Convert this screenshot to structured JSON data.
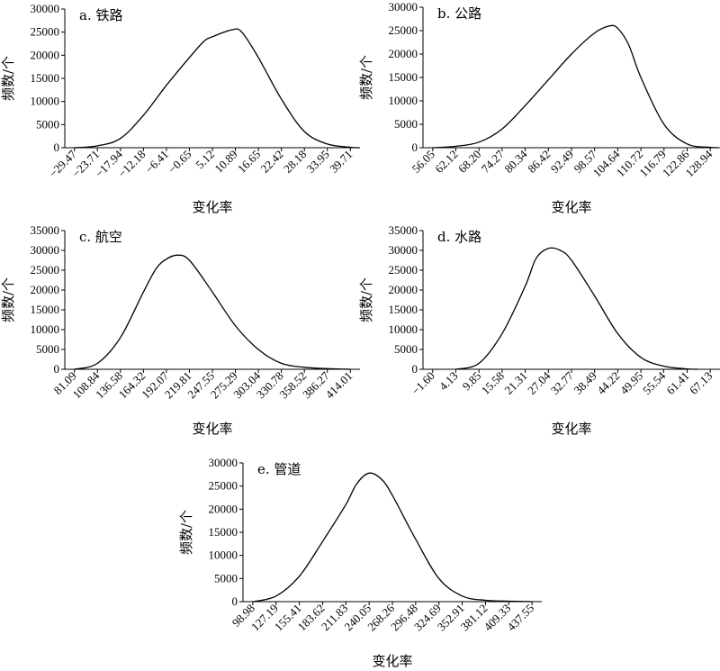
{
  "chart_data": [
    {
      "type": "line",
      "title": "a. 铁路",
      "xlabel": "变化率",
      "ylabel": "频数/个",
      "ylim": [
        0,
        30000
      ],
      "yticks": [
        "0",
        "5000",
        "10000",
        "15000",
        "20000",
        "25000",
        "30000"
      ],
      "xticks": [
        "−29.47",
        "−23.71",
        "−17.94",
        "−12.18",
        "−6.41",
        "−0.65",
        "5.12",
        "10.89",
        "16.65",
        "22.42",
        "28.18",
        "33.95",
        "39.71"
      ],
      "curve": [
        [
          -29.47,
          0
        ],
        [
          -23.71,
          400
        ],
        [
          -17.94,
          2000
        ],
        [
          -12.18,
          7000
        ],
        [
          -6.41,
          13500
        ],
        [
          -0.65,
          19500
        ],
        [
          3.0,
          23000
        ],
        [
          5.12,
          24000
        ],
        [
          10.0,
          25500
        ],
        [
          12.5,
          25000
        ],
        [
          16.65,
          19500
        ],
        [
          22.42,
          10500
        ],
        [
          28.18,
          3500
        ],
        [
          33.95,
          800
        ],
        [
          39.71,
          100
        ],
        [
          42.0,
          0
        ]
      ]
    },
    {
      "type": "line",
      "title": "b. 公路",
      "xlabel": "变化率",
      "ylabel": "频数/个",
      "ylim": [
        0,
        30000
      ],
      "yticks": [
        "0",
        "5000",
        "10000",
        "15000",
        "20000",
        "25000",
        "30000"
      ],
      "xticks": [
        "56.05",
        "62.12",
        "68.20",
        "74.27",
        "80.34",
        "86.42",
        "92.49",
        "98.57",
        "104.64",
        "110.72",
        "116.79",
        "122.86",
        "128.94"
      ],
      "curve": [
        [
          56.05,
          0
        ],
        [
          62.12,
          300
        ],
        [
          68.2,
          1200
        ],
        [
          74.27,
          4000
        ],
        [
          80.34,
          9000
        ],
        [
          86.42,
          14500
        ],
        [
          92.49,
          20000
        ],
        [
          98.57,
          24500
        ],
        [
          102.5,
          26000
        ],
        [
          104.64,
          25500
        ],
        [
          107.5,
          22000
        ],
        [
          110.72,
          15000
        ],
        [
          116.79,
          5000
        ],
        [
          122.86,
          800
        ],
        [
          128.94,
          100
        ],
        [
          131.0,
          0
        ]
      ]
    },
    {
      "type": "line",
      "title": "c. 航空",
      "xlabel": "变化率",
      "ylabel": "频数/个",
      "ylim": [
        0,
        35000
      ],
      "yticks": [
        "0",
        "5000",
        "10000",
        "15000",
        "20000",
        "25000",
        "30000",
        "35000"
      ],
      "xticks": [
        "81.09",
        "108.84",
        "136.58",
        "164.32",
        "192.07",
        "219.81",
        "247.55",
        "275.29",
        "303.04",
        "330.78",
        "358.52",
        "386.27",
        "414.01"
      ],
      "curve": [
        [
          81.09,
          0
        ],
        [
          108.84,
          1500
        ],
        [
          136.58,
          8000
        ],
        [
          164.32,
          19500
        ],
        [
          180.0,
          25500
        ],
        [
          192.07,
          27800
        ],
        [
          205.0,
          28800
        ],
        [
          219.81,
          27500
        ],
        [
          247.55,
          19500
        ],
        [
          275.29,
          11000
        ],
        [
          303.04,
          5000
        ],
        [
          330.78,
          1500
        ],
        [
          358.52,
          500
        ],
        [
          386.27,
          150
        ],
        [
          414.01,
          0
        ]
      ]
    },
    {
      "type": "line",
      "title": "d. 水路",
      "xlabel": "变化率",
      "ylabel": "频数/个",
      "ylim": [
        0,
        35000
      ],
      "yticks": [
        "0",
        "5000",
        "10000",
        "15000",
        "20000",
        "25000",
        "30000",
        "35000"
      ],
      "xticks": [
        "−1.60",
        "4.13",
        "9.85",
        "15.58",
        "21.31",
        "27.04",
        "32.77",
        "38.49",
        "44.22",
        "49.95",
        "55.54",
        "61.41",
        "67.13"
      ],
      "curve": [
        [
          4.13,
          0
        ],
        [
          9.85,
          1500
        ],
        [
          15.58,
          9000
        ],
        [
          21.31,
          21000
        ],
        [
          24.0,
          28000
        ],
        [
          27.04,
          30500
        ],
        [
          30.0,
          30000
        ],
        [
          32.77,
          27500
        ],
        [
          38.49,
          18500
        ],
        [
          44.22,
          9000
        ],
        [
          49.95,
          3000
        ],
        [
          55.54,
          800
        ],
        [
          61.41,
          100
        ],
        [
          64.0,
          0
        ]
      ]
    },
    {
      "type": "line",
      "title": "e. 管道",
      "xlabel": "变化率",
      "ylabel": "频数/个",
      "ylim": [
        0,
        30000
      ],
      "yticks": [
        "0",
        "5000",
        "10000",
        "15000",
        "20000",
        "25000",
        "30000"
      ],
      "xticks": [
        "98.98",
        "127.19",
        "155.41",
        "183.62",
        "211.83",
        "240.05",
        "268.26",
        "296.48",
        "324.69",
        "352.91",
        "381.12",
        "409.33",
        "437.55"
      ],
      "curve": [
        [
          98.98,
          0
        ],
        [
          127.19,
          1200
        ],
        [
          155.41,
          5500
        ],
        [
          183.62,
          13000
        ],
        [
          211.83,
          21000
        ],
        [
          225.0,
          25500
        ],
        [
          240.05,
          27800
        ],
        [
          255.0,
          26500
        ],
        [
          268.26,
          23000
        ],
        [
          296.48,
          13500
        ],
        [
          324.69,
          5000
        ],
        [
          352.91,
          1200
        ],
        [
          381.12,
          300
        ],
        [
          409.33,
          100
        ],
        [
          437.55,
          0
        ]
      ]
    }
  ]
}
